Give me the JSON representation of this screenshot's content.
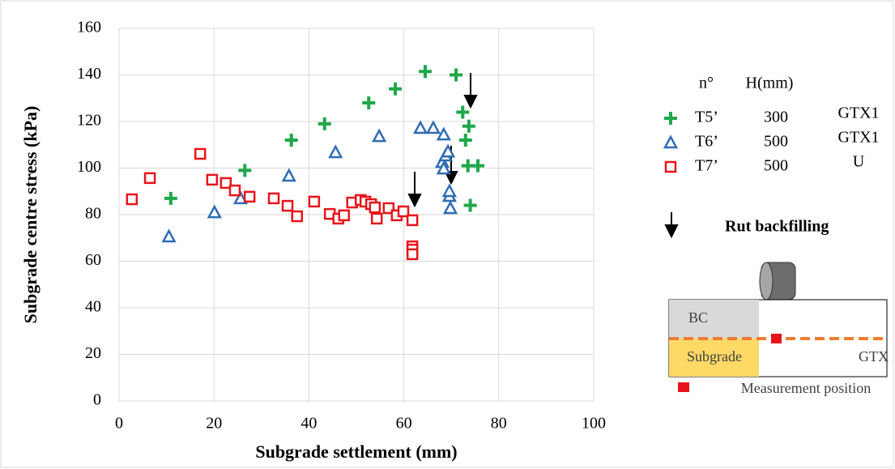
{
  "chart_data": {
    "type": "scatter",
    "x_label": "Subgrade settlement (mm)",
    "y_label": "Subgrade centre stress (kPa)",
    "xlim": [
      0,
      100
    ],
    "xticks": [
      0,
      20,
      40,
      60,
      80,
      100
    ],
    "ylim": [
      0,
      160
    ],
    "yticks": [
      0,
      20,
      40,
      60,
      80,
      100,
      120,
      140,
      160
    ],
    "grid": true,
    "legend_headers": [
      "n°",
      "H(mm)"
    ],
    "series": [
      {
        "name": "T5’",
        "color": "#1fa84a",
        "marker": "plus",
        "h": 300,
        "reinforcement": "GTX1",
        "x": [
          10.9,
          26.5,
          36.3,
          43.3,
          52.6,
          58.2,
          64.5,
          71,
          72.4,
          73,
          73.7,
          73.5,
          75.6,
          74
        ],
        "values": [
          87,
          99,
          112,
          119,
          128,
          134,
          141.5,
          140,
          124,
          112,
          118,
          101,
          101,
          84
        ]
      },
      {
        "name": "T6’",
        "color": "#2e6db4",
        "marker": "triangle",
        "h": 500,
        "reinforcement": "GTX1",
        "x": [
          10.5,
          20.1,
          25.6,
          35.8,
          45.6,
          54.8,
          63.5,
          66.2,
          68.4,
          68.1,
          68.4,
          68.8,
          69.3,
          69.6,
          69.6,
          69.8
        ],
        "values": [
          70.6,
          81,
          87,
          96.7,
          106.8,
          113.7,
          117.2,
          117.2,
          114.4,
          102.6,
          99.8,
          105.4,
          107.1,
          88,
          90.1,
          82.8
        ]
      },
      {
        "name": "T7’",
        "color": "#e8141b",
        "marker": "square",
        "h": 500,
        "reinforcement": "U",
        "x": [
          2.7,
          6.5,
          17.1,
          19.6,
          22.5,
          24.4,
          27.5,
          32.6,
          35.5,
          37.5,
          41.1,
          44.4,
          46.2,
          47.4,
          49.1,
          50.9,
          51.9,
          53.1,
          54.3,
          53.9,
          56.8,
          58.5,
          59.9,
          61.8,
          61.8,
          61.8,
          61.8
        ],
        "values": [
          86.6,
          95.7,
          106.1,
          95,
          93.6,
          90.4,
          87.7,
          87,
          83.8,
          79.3,
          85.6,
          80.3,
          78.3,
          79.7,
          85.2,
          86.3,
          85.6,
          84.5,
          78.3,
          83.1,
          82.8,
          79.7,
          81.4,
          77.6,
          66.4,
          65,
          63
        ]
      }
    ],
    "annotation": "Rut backfilling",
    "diagram": {
      "top_layer": "BC",
      "bottom_layer": "Subgrade",
      "interface": "GTX",
      "marker_label": "Measurement position"
    }
  }
}
